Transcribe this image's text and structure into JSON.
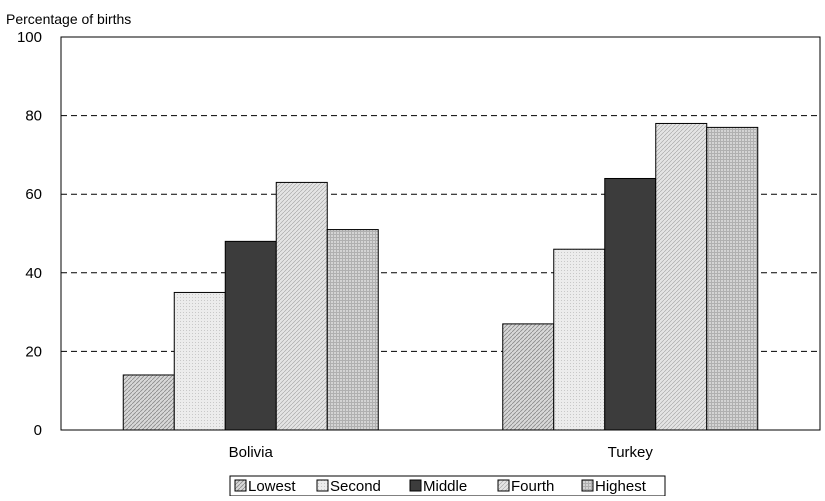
{
  "chart_data": {
    "type": "bar",
    "title": "",
    "ylabel": "Percentage of births",
    "xlabel": "",
    "categories": [
      "Bolivia",
      "Turkey"
    ],
    "series": [
      {
        "name": "Lowest",
        "values": [
          14,
          27
        ],
        "pattern": "lowest"
      },
      {
        "name": "Second",
        "values": [
          35,
          46
        ],
        "pattern": "second"
      },
      {
        "name": "Middle",
        "values": [
          48,
          64
        ],
        "pattern": "middle"
      },
      {
        "name": "Fourth",
        "values": [
          63,
          78
        ],
        "pattern": "fourth"
      },
      {
        "name": "Highest",
        "values": [
          51,
          77
        ],
        "pattern": "highest"
      }
    ],
    "ylim": [
      0,
      100
    ],
    "yticks": [
      0,
      20,
      40,
      60,
      80,
      100
    ],
    "grid": "dashed horizontal at 20, 40, 60, 80",
    "legend_position": "bottom-center"
  }
}
